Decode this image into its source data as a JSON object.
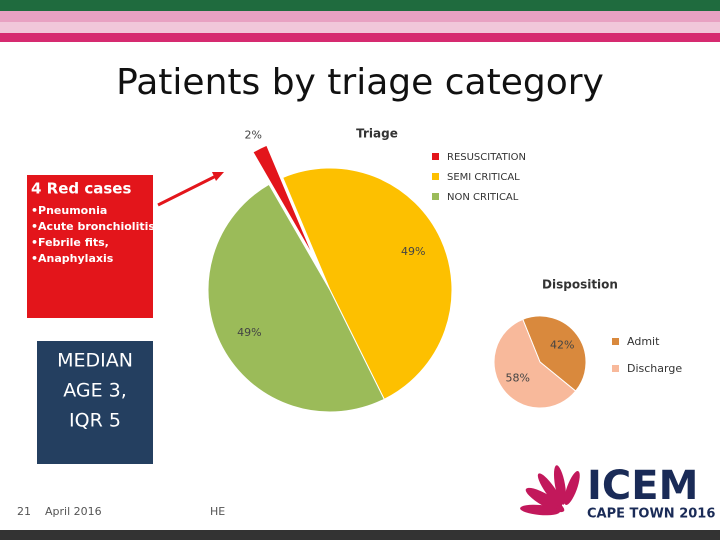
{
  "title": "Patients by triage category",
  "chart_data": [
    {
      "type": "pie",
      "title": "Triage",
      "categories": [
        "RESUSCITATION",
        "SEMI CRITICAL",
        "NON CRITICAL"
      ],
      "values": [
        2,
        49,
        49
      ],
      "value_labels": [
        "2%",
        "49%",
        "49%"
      ],
      "colors": [
        "#e3151b",
        "#fdc000",
        "#9bbb59"
      ],
      "legend": "right"
    },
    {
      "type": "pie",
      "title": "Disposition",
      "categories": [
        "Admit",
        "Discharge"
      ],
      "values": [
        42,
        58
      ],
      "value_labels": [
        "42%",
        "58%"
      ],
      "colors": [
        "#d9893d",
        "#f8b99b"
      ],
      "legend": "right"
    }
  ],
  "red_box": {
    "heading": "4 Red cases",
    "items": [
      "•Pneumonia",
      "•Acute bronchiolitis",
      "•Febrile fits,",
      "•Anaphylaxis"
    ]
  },
  "median_box": {
    "lines": [
      "MEDIAN",
      "AGE 3,",
      "IQR 5"
    ]
  },
  "footer": {
    "page": "21",
    "date": "April 2016",
    "initials": "HE"
  },
  "logo": {
    "name": "ICEM",
    "sub": "CAPE TOWN 2016"
  }
}
